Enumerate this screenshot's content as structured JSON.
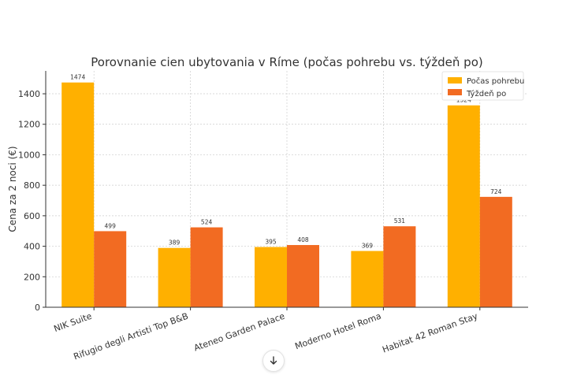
{
  "chart_data": {
    "type": "bar",
    "title": "Porovnanie cien ubytovania v Ríme (počas pohrebu vs. týždeň po)",
    "xlabel": "",
    "ylabel": "Cena za 2 noci (€)",
    "categories": [
      "NIK Suite",
      "Rifugio degli Artisti Top B&B",
      "Ateneo Garden Palace",
      "Moderno Hotel Roma",
      "Habitat 42 Roman Stay"
    ],
    "series": [
      {
        "name": "Počas pohrebu",
        "values": [
          1474,
          389,
          395,
          369,
          1324
        ],
        "color": "#FFB000"
      },
      {
        "name": "Týždeň po",
        "values": [
          499,
          524,
          408,
          531,
          724
        ],
        "color": "#F26B22"
      }
    ],
    "ylim": [
      0,
      1550
    ],
    "yticks": [
      0,
      200,
      400,
      600,
      800,
      1000,
      1200,
      1400
    ],
    "grid": true,
    "legend_position": "top-right"
  },
  "ui": {
    "scroll_icon": "arrow-down-icon"
  }
}
